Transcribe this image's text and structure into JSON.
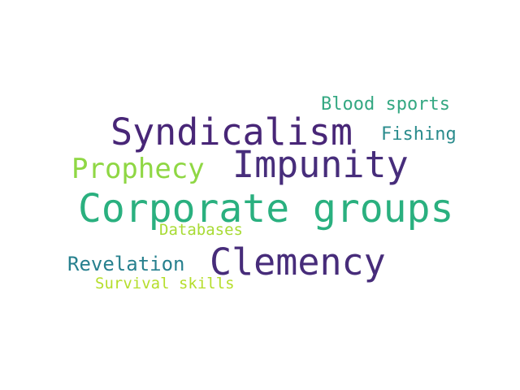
{
  "word_cloud": {
    "words": [
      {
        "text": "Syndicalism",
        "color": "#482677"
      },
      {
        "text": "Impunity",
        "color": "#472d7b"
      },
      {
        "text": "Corporate groups",
        "color": "#2ab07f"
      },
      {
        "text": "Clemency",
        "color": "#472c7a"
      },
      {
        "text": "Prophecy",
        "color": "#8fd744"
      },
      {
        "text": "Blood sports",
        "color": "#34a882"
      },
      {
        "text": "Fishing",
        "color": "#2b8c8d"
      },
      {
        "text": "Databases",
        "color": "#a8db34"
      },
      {
        "text": "Revelation",
        "color": "#27808e"
      },
      {
        "text": "Survival skills",
        "color": "#b5de2b"
      }
    ]
  }
}
